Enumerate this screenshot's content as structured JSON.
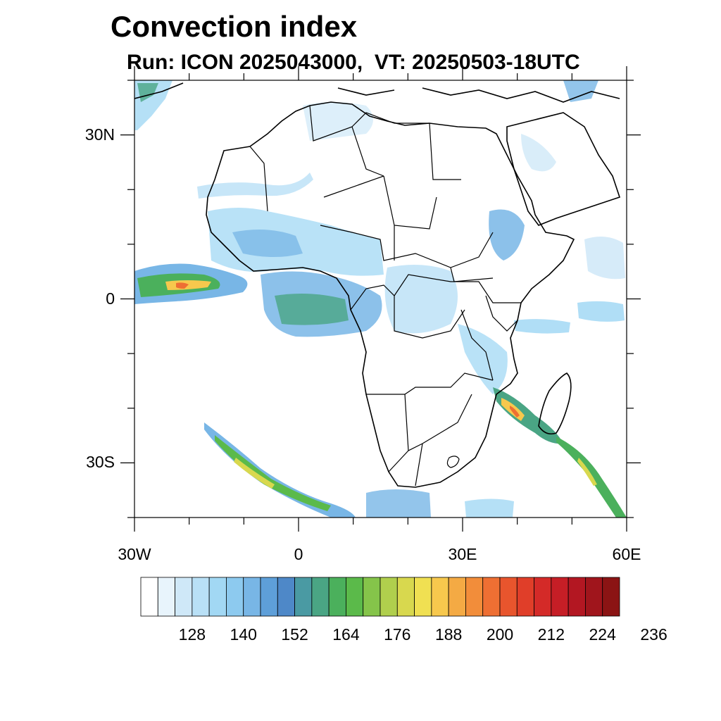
{
  "title": "Convection index",
  "subtitle": "Run: ICON 2025043000,  VT: 20250503-18UTC",
  "map": {
    "lon_range": [
      -30,
      60
    ],
    "lat_range": [
      -40,
      40
    ],
    "lat_ticks": [
      {
        "value": 30,
        "label": "30N"
      },
      {
        "value": 0,
        "label": "0"
      },
      {
        "value": -30,
        "label": "30S"
      }
    ],
    "lon_ticks": [
      {
        "value": -30,
        "label": "30W"
      },
      {
        "value": 0,
        "label": "0"
      },
      {
        "value": 30,
        "label": "30E"
      },
      {
        "value": 60,
        "label": "60E"
      }
    ]
  },
  "colorbar": {
    "colors": [
      "#ffffff",
      "#e8f4fc",
      "#cfe8f8",
      "#b9e0f6",
      "#a2d8f4",
      "#8dcaef",
      "#78b6e6",
      "#5e9fd9",
      "#4e88c8",
      "#4a9aa3",
      "#4aa584",
      "#4bb05c",
      "#5bba4a",
      "#85c44a",
      "#b0cf4d",
      "#d8d84e",
      "#f0e052",
      "#f7c84d",
      "#f4aa44",
      "#f28d3a",
      "#ee6f33",
      "#e8552d",
      "#e03e29",
      "#d42a28",
      "#c61e26",
      "#b31722",
      "#a0151c",
      "#8b1414"
    ],
    "labels": [
      "128",
      "140",
      "152",
      "164",
      "176",
      "188",
      "200",
      "212",
      "224",
      "236"
    ]
  }
}
